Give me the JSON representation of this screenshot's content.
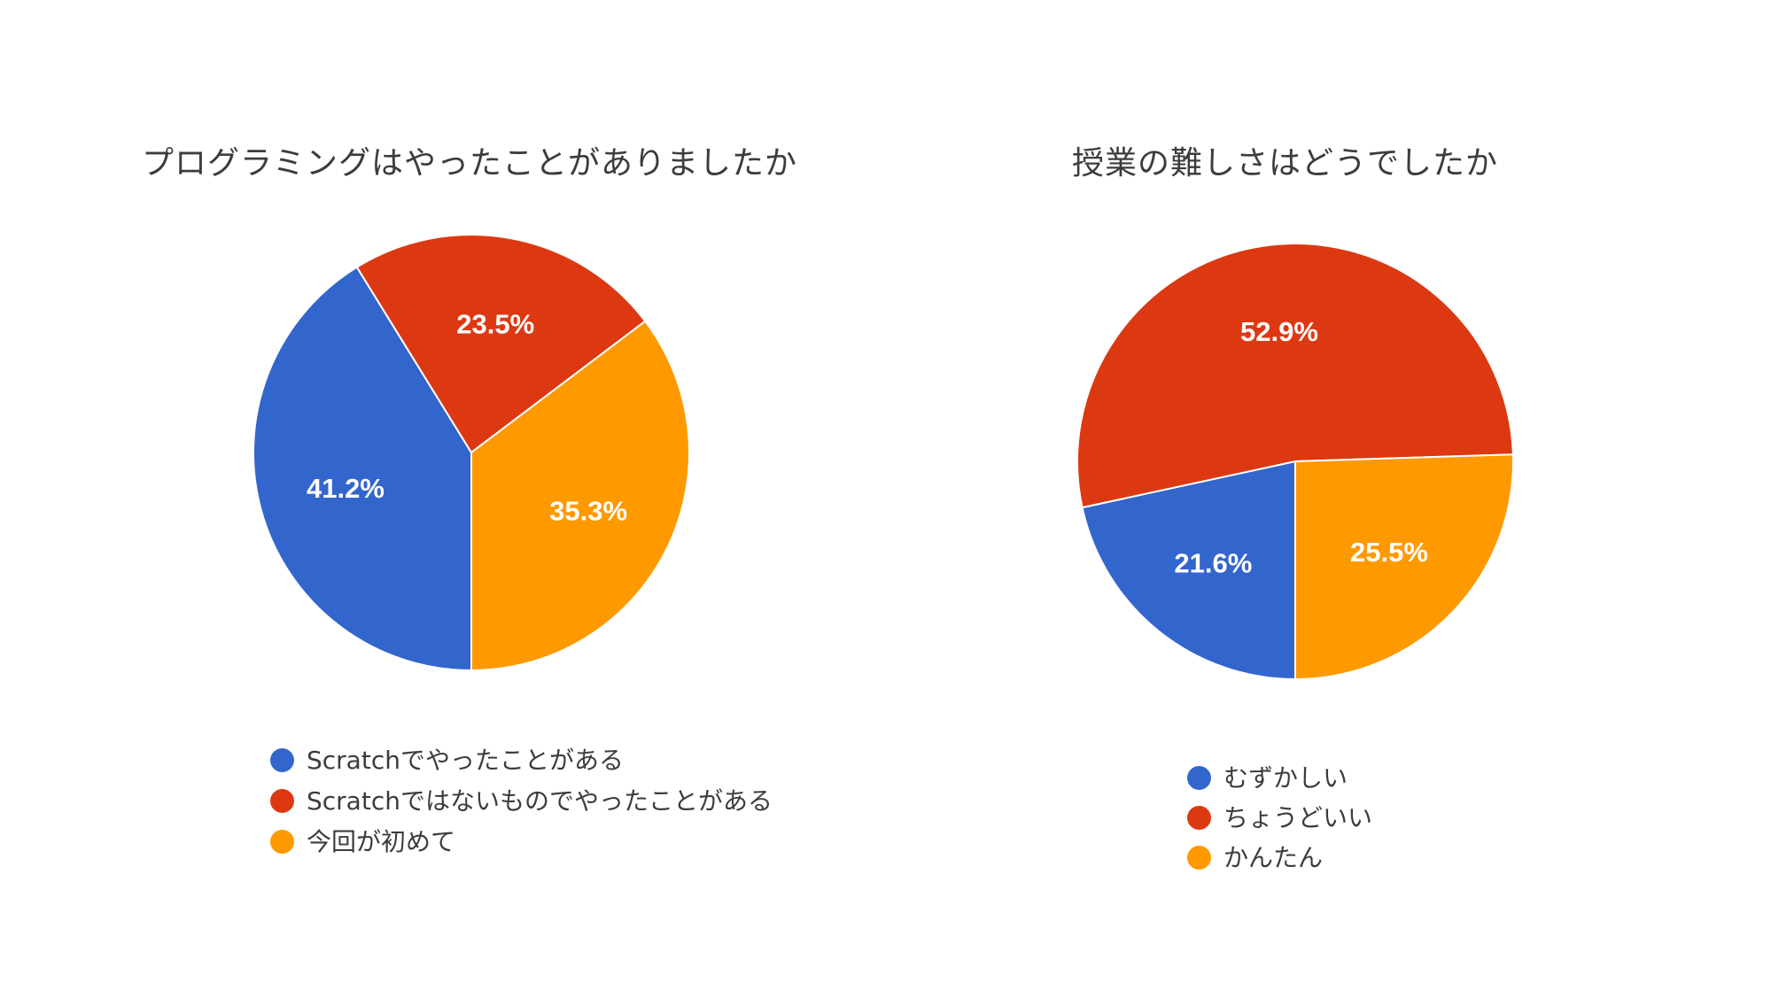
{
  "colors": {
    "blue": "#3366cc",
    "red": "#dc3912",
    "orange": "#ff9900"
  },
  "chart_data": [
    {
      "type": "pie",
      "title": "プログラミングはやったことがありましたか",
      "legend": "bottom",
      "slices": [
        {
          "label": "Scratchでやったことがある",
          "value": 41.2,
          "display": "41.2%",
          "color": "#3366cc"
        },
        {
          "label": "Scratchではないものでやったことがある",
          "value": 23.5,
          "display": "23.5%",
          "color": "#dc3912"
        },
        {
          "label": "今回が初めて",
          "value": 35.3,
          "display": "35.3%",
          "color": "#ff9900"
        }
      ]
    },
    {
      "type": "pie",
      "title": "授業の難しさはどうでしたか",
      "legend": "bottom",
      "slices": [
        {
          "label": "むずかしい",
          "value": 21.6,
          "display": "21.6%",
          "color": "#3366cc"
        },
        {
          "label": "ちょうどいい",
          "value": 52.9,
          "display": "52.9%",
          "color": "#dc3912"
        },
        {
          "label": "かんたん",
          "value": 25.5,
          "display": "25.5%",
          "color": "#ff9900"
        }
      ]
    }
  ]
}
